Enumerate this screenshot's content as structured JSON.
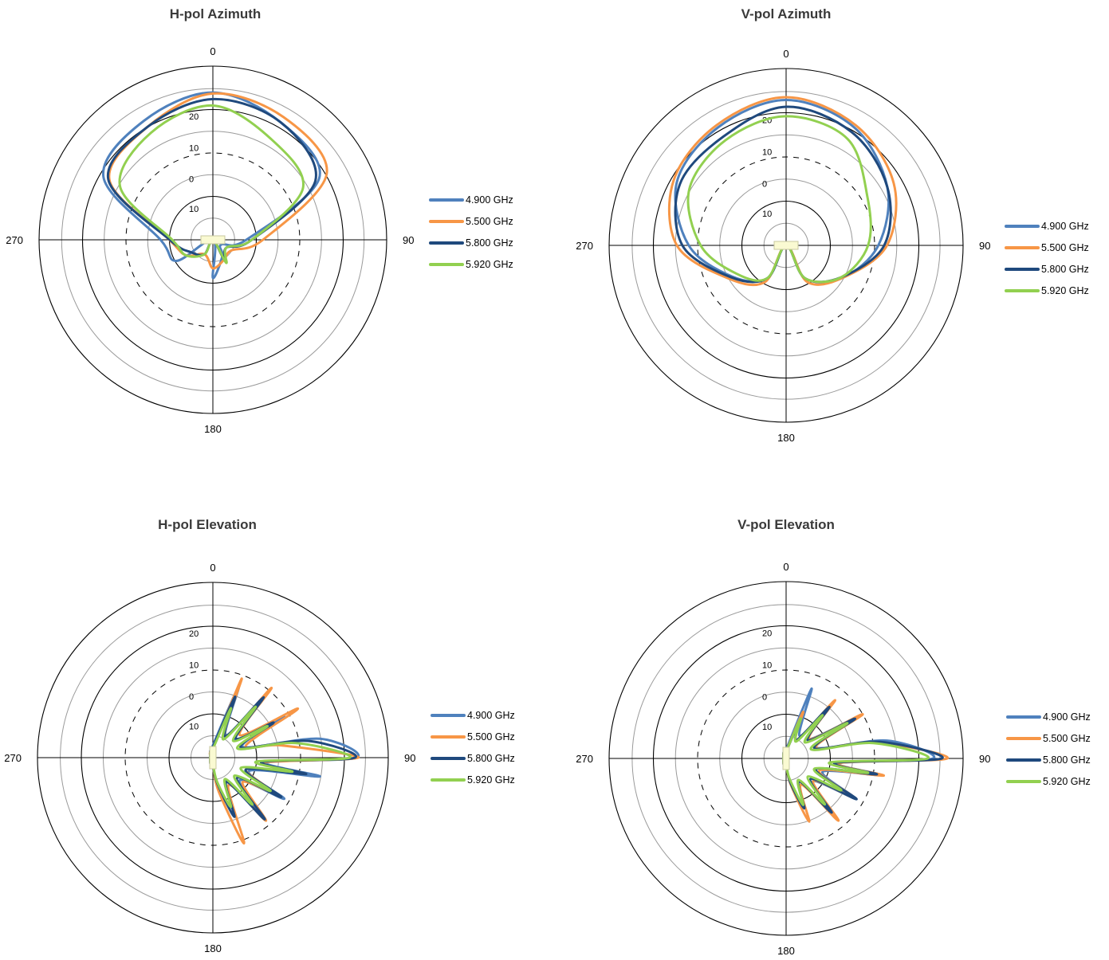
{
  "chart_data": [
    {
      "type": "polar-line",
      "title": "H-pol Azimuth",
      "angle_labels": [
        "0",
        "90",
        "180",
        "270"
      ],
      "radial_tick_labels": [
        "20",
        "10",
        "0",
        "10"
      ],
      "legend_placement": "right",
      "series": [
        {
          "name": "4.900 GHz",
          "color": "#4f81bd",
          "theta": [
            0,
            30,
            60,
            90,
            120,
            150,
            180,
            210,
            240,
            270,
            300,
            330
          ],
          "r": [
            0.848,
            0.781,
            0.706,
            0.192,
            0.055,
            0.109,
            0.219,
            0.0,
            0.243,
            0.301,
            0.727,
            0.792
          ]
        },
        {
          "name": "5.500 GHz",
          "color": "#f79646",
          "theta": [
            0,
            30,
            60,
            90,
            120,
            150,
            180,
            210,
            240,
            270,
            300,
            330
          ],
          "r": [
            0.842,
            0.815,
            0.756,
            0.288,
            0.123,
            0.131,
            0.164,
            0.096,
            0.179,
            0.25,
            0.687,
            0.751
          ]
        },
        {
          "name": "5.800 GHz",
          "color": "#1f497d",
          "theta": [
            0,
            30,
            60,
            90,
            120,
            150,
            180,
            210,
            240,
            270,
            300,
            330
          ],
          "r": [
            0.81,
            0.781,
            0.681,
            0.224,
            0.09,
            0.131,
            0.0,
            0.096,
            0.144,
            0.248,
            0.695,
            0.751
          ]
        },
        {
          "name": "5.920 GHz",
          "color": "#92d050",
          "theta": [
            0,
            30,
            60,
            90,
            120,
            150,
            180,
            210,
            240,
            270,
            300,
            330
          ],
          "r": [
            0.773,
            0.67,
            0.599,
            0.224,
            0.09,
            0.153,
            0.0,
            0.096,
            0.179,
            0.234,
            0.617,
            0.712
          ]
        }
      ]
    },
    {
      "type": "polar-line",
      "title": "V-pol Azimuth",
      "angle_labels": [
        "0",
        "90",
        "180",
        "270"
      ],
      "radial_tick_labels": [
        "20",
        "10",
        "0",
        "10"
      ],
      "legend_placement": "right",
      "series": [
        {
          "name": "4.900 GHz",
          "color": "#4f81bd",
          "theta": [
            0,
            30,
            60,
            90,
            120,
            150,
            180,
            210,
            240,
            270,
            300,
            330
          ],
          "r": [
            0.822,
            0.77,
            0.66,
            0.521,
            0.368,
            0.216,
            0.0,
            0.216,
            0.352,
            0.55,
            0.713,
            0.77
          ]
        },
        {
          "name": "5.500 GHz",
          "color": "#f79646",
          "theta": [
            0,
            30,
            60,
            90,
            120,
            150,
            180,
            210,
            240,
            270,
            300,
            330
          ],
          "r": [
            0.838,
            0.785,
            0.702,
            0.57,
            0.368,
            0.239,
            0.0,
            0.239,
            0.375,
            0.617,
            0.734,
            0.785
          ]
        },
        {
          "name": "5.800 GHz",
          "color": "#1f497d",
          "theta": [
            0,
            30,
            60,
            90,
            120,
            150,
            180,
            210,
            240,
            270,
            300,
            330
          ],
          "r": [
            0.784,
            0.74,
            0.66,
            0.554,
            0.36,
            0.216,
            0.0,
            0.216,
            0.36,
            0.586,
            0.693,
            0.71
          ]
        },
        {
          "name": "5.920 GHz",
          "color": "#92d050",
          "theta": [
            0,
            30,
            60,
            90,
            120,
            150,
            180,
            210,
            240,
            270,
            300,
            330
          ],
          "r": [
            0.73,
            0.695,
            0.532,
            0.463,
            0.36,
            0.216,
            0.0,
            0.216,
            0.322,
            0.483,
            0.632,
            0.686
          ]
        }
      ]
    },
    {
      "type": "polar-line",
      "title": "H-pol Elevation",
      "angle_labels": [
        "0",
        "90",
        "180",
        "270"
      ],
      "radial_tick_labels": [
        "20",
        "10",
        "0",
        "10"
      ],
      "legend_placement": "right",
      "series": [
        {
          "name": "4.900 GHz",
          "color": "#4f81bd",
          "theta": [
            0,
            20,
            30,
            40,
            50,
            60,
            70,
            80,
            90,
            95,
            100,
            110,
            120,
            130,
            140,
            150,
            160,
            170,
            180
          ],
          "r": [
            0.07,
            0.43,
            0.15,
            0.43,
            0.16,
            0.47,
            0.18,
            0.62,
            0.82,
            0.3,
            0.62,
            0.22,
            0.47,
            0.2,
            0.42,
            0.15,
            0.3,
            0.18,
            0.05
          ]
        },
        {
          "name": "5.500 GHz",
          "color": "#f79646",
          "theta": [
            0,
            20,
            30,
            40,
            50,
            60,
            70,
            80,
            90,
            95,
            100,
            110,
            120,
            130,
            140,
            150,
            160,
            170,
            180
          ],
          "r": [
            0.05,
            0.48,
            0.14,
            0.52,
            0.2,
            0.56,
            0.2,
            0.4,
            0.83,
            0.3,
            0.4,
            0.2,
            0.4,
            0.22,
            0.47,
            0.18,
            0.52,
            0.2,
            0.05
          ]
        },
        {
          "name": "5.800 GHz",
          "color": "#1f497d",
          "theta": [
            0,
            20,
            30,
            40,
            50,
            60,
            70,
            80,
            90,
            95,
            100,
            110,
            120,
            130,
            140,
            150,
            160,
            170,
            180
          ],
          "r": [
            0.06,
            0.37,
            0.14,
            0.45,
            0.17,
            0.4,
            0.17,
            0.55,
            0.81,
            0.28,
            0.54,
            0.2,
            0.45,
            0.18,
            0.46,
            0.16,
            0.36,
            0.15,
            0.05
          ]
        },
        {
          "name": "5.920 GHz",
          "color": "#92d050",
          "theta": [
            0,
            20,
            30,
            40,
            50,
            60,
            70,
            80,
            90,
            95,
            100,
            110,
            120,
            130,
            140,
            150,
            160,
            170,
            180
          ],
          "r": [
            0.05,
            0.3,
            0.12,
            0.38,
            0.15,
            0.36,
            0.15,
            0.48,
            0.78,
            0.25,
            0.46,
            0.17,
            0.38,
            0.16,
            0.35,
            0.14,
            0.3,
            0.14,
            0.04
          ]
        }
      ]
    },
    {
      "type": "polar-line",
      "title": "V-pol Elevation",
      "angle_labels": [
        "0",
        "90",
        "180",
        "270"
      ],
      "radial_tick_labels": [
        "20",
        "10",
        "0",
        "10"
      ],
      "legend_placement": "right",
      "series": [
        {
          "name": "4.900 GHz",
          "color": "#4f81bd",
          "theta": [
            0,
            20,
            30,
            40,
            50,
            60,
            70,
            80,
            90,
            95,
            100,
            110,
            120,
            130,
            140,
            150,
            160,
            170,
            180
          ],
          "r": [
            0.05,
            0.42,
            0.15,
            0.33,
            0.17,
            0.45,
            0.18,
            0.58,
            0.83,
            0.3,
            0.54,
            0.22,
            0.44,
            0.2,
            0.38,
            0.15,
            0.3,
            0.14,
            0.04
          ]
        },
        {
          "name": "5.500 GHz",
          "color": "#f79646",
          "theta": [
            0,
            20,
            30,
            40,
            50,
            60,
            70,
            80,
            90,
            95,
            100,
            110,
            120,
            130,
            140,
            150,
            160,
            170,
            180
          ],
          "r": [
            0.04,
            0.28,
            0.12,
            0.43,
            0.17,
            0.5,
            0.18,
            0.52,
            0.91,
            0.3,
            0.56,
            0.2,
            0.44,
            0.2,
            0.46,
            0.17,
            0.38,
            0.15,
            0.04
          ]
        },
        {
          "name": "5.800 GHz",
          "color": "#1f497d",
          "theta": [
            0,
            20,
            30,
            40,
            50,
            60,
            70,
            80,
            90,
            95,
            100,
            110,
            120,
            130,
            140,
            150,
            160,
            170,
            180
          ],
          "r": [
            0.04,
            0.22,
            0.12,
            0.38,
            0.16,
            0.45,
            0.17,
            0.54,
            0.88,
            0.28,
            0.52,
            0.18,
            0.46,
            0.18,
            0.4,
            0.15,
            0.3,
            0.14,
            0.04
          ]
        },
        {
          "name": "5.920 GHz",
          "color": "#92d050",
          "theta": [
            0,
            20,
            30,
            40,
            50,
            60,
            70,
            80,
            90,
            95,
            100,
            110,
            120,
            130,
            140,
            150,
            160,
            170,
            180
          ],
          "r": [
            0.04,
            0.24,
            0.11,
            0.32,
            0.14,
            0.4,
            0.15,
            0.5,
            0.8,
            0.25,
            0.47,
            0.17,
            0.36,
            0.16,
            0.34,
            0.14,
            0.28,
            0.12,
            0.04
          ]
        }
      ]
    }
  ]
}
